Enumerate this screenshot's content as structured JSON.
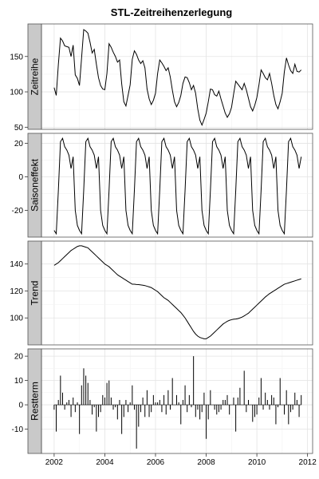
{
  "title": "STL-Zeitreihenzerlegung",
  "chart_data": {
    "type": "line",
    "title": "STL-Zeitreihenzerlegung",
    "x_axis": {
      "label": "",
      "range": [
        2001.5,
        2012.2
      ],
      "ticks": [
        2002,
        2004,
        2006,
        2008,
        2010,
        2012
      ],
      "tick_labels": [
        "2002",
        "2004",
        "2006",
        "2008",
        "2010",
        "2012"
      ]
    },
    "grid": true,
    "legend": "none",
    "x": [
      2002.0,
      2002.083,
      2002.167,
      2002.25,
      2002.333,
      2002.417,
      2002.5,
      2002.583,
      2002.667,
      2002.75,
      2002.833,
      2002.917,
      2003.0,
      2003.083,
      2003.167,
      2003.25,
      2003.333,
      2003.417,
      2003.5,
      2003.583,
      2003.667,
      2003.75,
      2003.833,
      2003.917,
      2004.0,
      2004.083,
      2004.167,
      2004.25,
      2004.333,
      2004.417,
      2004.5,
      2004.583,
      2004.667,
      2004.75,
      2004.833,
      2004.917,
      2005.0,
      2005.083,
      2005.167,
      2005.25,
      2005.333,
      2005.417,
      2005.5,
      2005.583,
      2005.667,
      2005.75,
      2005.833,
      2005.917,
      2006.0,
      2006.083,
      2006.167,
      2006.25,
      2006.333,
      2006.417,
      2006.5,
      2006.583,
      2006.667,
      2006.75,
      2006.833,
      2006.917,
      2007.0,
      2007.083,
      2007.167,
      2007.25,
      2007.333,
      2007.417,
      2007.5,
      2007.583,
      2007.667,
      2007.75,
      2007.833,
      2007.917,
      2008.0,
      2008.083,
      2008.167,
      2008.25,
      2008.333,
      2008.417,
      2008.5,
      2008.583,
      2008.667,
      2008.75,
      2008.833,
      2008.917,
      2009.0,
      2009.083,
      2009.167,
      2009.25,
      2009.333,
      2009.417,
      2009.5,
      2009.583,
      2009.667,
      2009.75,
      2009.833,
      2009.917,
      2010.0,
      2010.083,
      2010.167,
      2010.25,
      2010.333,
      2010.417,
      2010.5,
      2010.583,
      2010.667,
      2010.75,
      2010.833,
      2010.917,
      2011.0,
      2011.083,
      2011.167,
      2011.25,
      2011.333,
      2011.417,
      2011.5,
      2011.583,
      2011.667,
      2011.75
    ],
    "panels": [
      {
        "name": "Zeitreihe",
        "ylim": [
          47,
          196
        ],
        "y_ticks": [
          50,
          100,
          150
        ],
        "y_tick_labels": [
          "50",
          "100",
          "150"
        ],
        "kind": "line",
        "values": [
          106,
          95,
          139,
          176,
          172,
          165,
          164,
          163,
          150,
          166,
          124,
          119,
          109,
          148,
          188,
          186,
          183,
          170,
          155,
          160,
          139,
          120,
          109,
          104,
          103,
          126,
          168,
          163,
          156,
          150,
          142,
          145,
          111,
          86,
          80,
          95,
          110,
          146,
          158,
          153,
          145,
          140,
          144,
          134,
          104,
          90,
          82,
          88,
          98,
          126,
          145,
          141,
          136,
          130,
          134,
          121,
          102,
          86,
          79,
          85,
          95,
          112,
          121,
          120,
          113,
          103,
          109,
          98,
          76,
          60,
          53,
          61,
          70,
          86,
          104,
          103,
          96,
          94,
          101,
          90,
          80,
          70,
          64,
          69,
          78,
          97,
          115,
          111,
          107,
          103,
          112,
          103,
          91,
          79,
          73,
          81,
          92,
          110,
          131,
          126,
          120,
          117,
          126,
          112,
          95,
          82,
          76,
          86,
          98,
          128,
          148,
          138,
          130,
          126,
          139,
          129,
          128,
          131
        ]
      },
      {
        "name": "Saisoneffekt",
        "ylim": [
          -36,
          26
        ],
        "y_ticks": [
          -20,
          0,
          20
        ],
        "y_tick_labels": [
          "-20",
          "0",
          "20"
        ],
        "kind": "line",
        "values": [
          -32,
          -34,
          -8,
          21,
          23,
          18,
          16,
          13,
          5,
          12,
          -20,
          -29,
          -32,
          -34,
          -8,
          21,
          23,
          18,
          16,
          13,
          5,
          12,
          -20,
          -29,
          -32,
          -34,
          -8,
          21,
          23,
          18,
          16,
          13,
          5,
          12,
          -20,
          -29,
          -32,
          -34,
          -8,
          21,
          23,
          18,
          16,
          13,
          5,
          12,
          -20,
          -29,
          -32,
          -34,
          -8,
          21,
          23,
          18,
          16,
          13,
          5,
          12,
          -20,
          -29,
          -32,
          -34,
          -8,
          21,
          23,
          18,
          16,
          13,
          5,
          12,
          -20,
          -29,
          -32,
          -34,
          -8,
          21,
          23,
          18,
          16,
          13,
          5,
          12,
          -20,
          -29,
          -32,
          -34,
          -8,
          21,
          23,
          18,
          16,
          13,
          5,
          12,
          -20,
          -29,
          -32,
          -34,
          -8,
          21,
          23,
          18,
          16,
          13,
          5,
          12,
          -20,
          -29,
          -32,
          -34,
          -8,
          21,
          23,
          18,
          16,
          13,
          5,
          12
        ]
      },
      {
        "name": "Trend",
        "ylim": [
          80,
          157
        ],
        "y_ticks": [
          100,
          120,
          140
        ],
        "y_tick_labels": [
          "100",
          "120",
          "140"
        ],
        "kind": "line",
        "values": [
          139,
          140,
          141,
          142.5,
          144,
          145.5,
          147,
          148.5,
          150,
          151,
          152,
          153,
          153.5,
          153.5,
          153,
          152.5,
          152,
          150.5,
          149,
          147.5,
          146,
          144.5,
          143,
          141.5,
          140,
          139,
          138,
          136.5,
          135,
          133.5,
          132,
          131,
          130,
          129,
          128,
          127,
          126,
          125,
          125,
          124.8,
          124.7,
          124.5,
          124.3,
          124,
          123.5,
          123,
          122.5,
          121.5,
          120.5,
          119.5,
          118,
          116.5,
          115,
          114,
          113,
          111.5,
          110,
          108.5,
          107,
          105.5,
          104,
          102,
          100,
          97.5,
          95,
          92.5,
          90,
          88,
          86.5,
          85.5,
          85,
          84.5,
          84.5,
          85.5,
          86.5,
          88,
          89.5,
          91,
          92.5,
          94,
          95.5,
          96.5,
          97.5,
          98.2,
          98.7,
          99,
          99.2,
          99.5,
          100,
          100.6,
          101.5,
          102.5,
          103.5,
          105,
          106.5,
          108,
          109.5,
          111,
          112.5,
          114,
          115.5,
          116.8,
          118,
          119,
          120,
          121,
          122,
          123,
          124,
          125,
          125.5,
          126,
          126.5,
          127,
          127.5,
          128,
          128.5,
          129
        ]
      },
      {
        "name": "Restterm",
        "ylim": [
          -20,
          23
        ],
        "y_ticks": [
          -10,
          0,
          10,
          20
        ],
        "y_tick_labels": [
          "-10",
          "0",
          "10",
          "20"
        ],
        "kind": "bar",
        "values": [
          -2,
          -11,
          2,
          12,
          5,
          -2,
          1,
          2,
          -5,
          3,
          -3,
          1,
          -12,
          8,
          15,
          12,
          9,
          2,
          -4,
          -1,
          -11,
          -5,
          -3,
          4,
          3,
          9,
          10,
          3,
          -2,
          -1,
          -6,
          2,
          -12,
          -5,
          2,
          -3,
          1,
          8,
          -2,
          -18,
          -9,
          -3,
          3,
          -5,
          6,
          -5,
          -3,
          4,
          1,
          1,
          2,
          -3,
          4,
          -4,
          6,
          -2,
          11,
          0,
          4,
          1,
          -8,
          2,
          8,
          -3,
          4,
          -1,
          20,
          -5,
          -2,
          -6,
          -3,
          5,
          -14,
          -6,
          6,
          0,
          -2,
          -4,
          -3,
          -2,
          2,
          2,
          4,
          -4,
          0,
          3,
          -11,
          3,
          7,
          0,
          14,
          -3,
          2,
          0,
          -7,
          -5,
          -4,
          3,
          11,
          -2,
          5,
          2,
          -2,
          4,
          3,
          -8,
          -1,
          11,
          0,
          -4,
          6,
          -8,
          -3,
          -2,
          5,
          2,
          -5,
          4
        ]
      }
    ]
  }
}
